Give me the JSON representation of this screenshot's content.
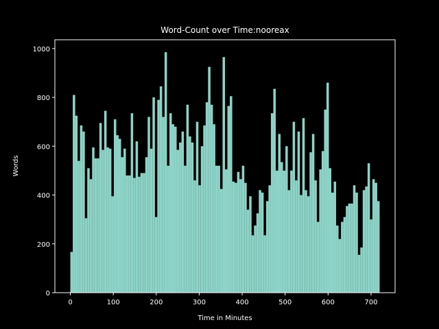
{
  "chart_data": {
    "type": "histogram",
    "title": "Word-Count over Time:nooreax",
    "x_label": "Time in Minutes",
    "y_label": "Words",
    "color": "#8dd3c7",
    "bins": [
      0,
      5.625,
      11.25,
      16.875,
      22.5,
      28.125,
      33.75,
      39.375,
      45,
      50.625,
      56.25,
      61.875,
      67.5,
      73.125,
      78.75,
      84.375,
      90,
      95.625,
      101.25,
      106.875,
      112.5,
      118.125,
      123.75,
      129.375,
      135,
      140.625,
      146.25,
      151.875,
      157.5,
      163.125,
      168.75,
      174.375,
      180,
      185.625,
      191.25,
      196.875,
      202.5,
      208.125,
      213.75,
      219.375,
      225,
      230.625,
      236.25,
      241.875,
      247.5,
      253.125,
      258.75,
      264.375,
      270,
      275.625,
      281.25,
      286.875,
      292.5,
      298.125,
      303.75,
      309.375,
      315,
      320.625,
      326.25,
      331.875,
      337.5,
      343.125,
      348.75,
      354.375,
      360,
      365.625,
      371.25,
      376.875,
      382.5,
      388.125,
      393.75,
      399.375,
      405,
      410.625,
      416.25,
      421.875,
      427.5,
      433.125,
      438.75,
      444.375,
      450,
      455.625,
      461.25,
      466.875,
      472.5,
      478.125,
      483.75,
      489.375,
      495,
      500.625,
      506.25,
      511.875,
      517.5,
      523.125,
      528.75,
      534.375,
      540,
      545.625,
      551.25,
      556.875,
      562.5,
      568.125,
      573.75,
      579.375,
      585,
      590.625,
      596.25,
      601.875,
      607.5,
      613.125,
      618.75,
      624.375,
      630,
      635.625,
      641.25,
      646.875,
      652.5,
      658.125,
      663.75,
      669.375,
      675,
      680.625,
      686.25,
      691.875,
      697.5,
      703.125,
      708.75,
      714.375,
      720
    ],
    "values": [
      167,
      810,
      725,
      540,
      685,
      660,
      305,
      510,
      465,
      595,
      550,
      550,
      695,
      585,
      745,
      595,
      590,
      395,
      710,
      645,
      630,
      555,
      590,
      480,
      480,
      735,
      470,
      620,
      475,
      490,
      490,
      555,
      720,
      590,
      800,
      310,
      790,
      845,
      720,
      985,
      520,
      735,
      690,
      680,
      585,
      615,
      660,
      520,
      770,
      640,
      615,
      460,
      700,
      440,
      600,
      685,
      780,
      925,
      770,
      690,
      520,
      520,
      425,
      965,
      505,
      765,
      805,
      455,
      450,
      495,
      465,
      520,
      450,
      340,
      395,
      235,
      275,
      325,
      420,
      410,
      235,
      375,
      440,
      735,
      835,
      500,
      650,
      535,
      500,
      600,
      420,
      500,
      700,
      460,
      660,
      400,
      715,
      420,
      395,
      575,
      650,
      460,
      290,
      505,
      580,
      750,
      860,
      510,
      410,
      455,
      275,
      220,
      290,
      310,
      355,
      365,
      365,
      440,
      410,
      155,
      185,
      420,
      435,
      530,
      300,
      465,
      450,
      375
    ],
    "xlim": [
      -36,
      756
    ],
    "ylim": [
      0,
      1036
    ],
    "xticks": [
      0,
      100,
      200,
      300,
      400,
      500,
      600,
      700
    ],
    "yticks": [
      0,
      200,
      400,
      600,
      800,
      1000
    ]
  }
}
